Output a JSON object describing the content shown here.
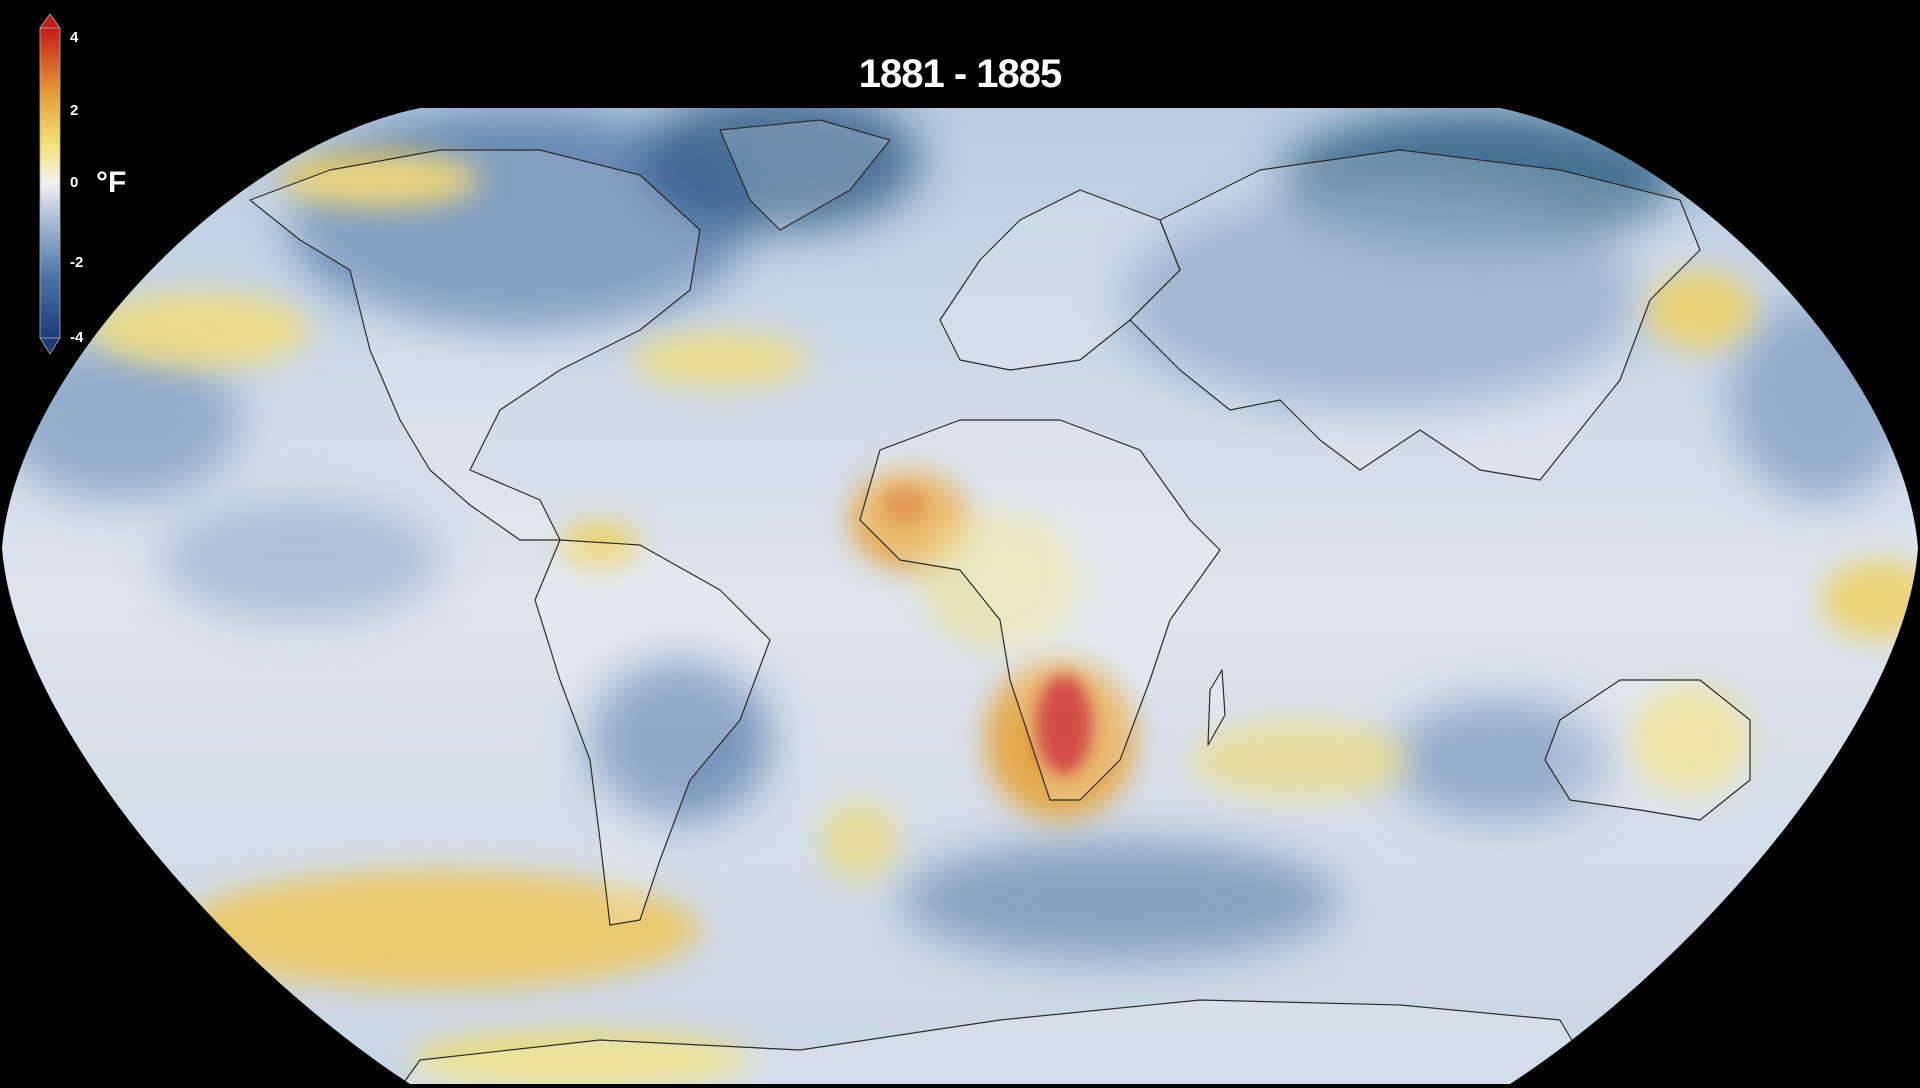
{
  "title": "1881 - 1885",
  "legend": {
    "unit": "°F",
    "ticks": [
      "4",
      "2",
      "0",
      "-2",
      "-4"
    ],
    "colors": {
      "max": "#c61a1a",
      "warm": "#e8a23a",
      "slight_warm": "#f5e27a",
      "neutral": "#f2f2f2",
      "slight_cool": "#a9bdd6",
      "cool": "#4e74a6",
      "min": "#1d3a78"
    }
  },
  "map": {
    "projection": "Robinson",
    "variable": "Temperature anomaly",
    "background": "#000000",
    "ocean_neutral": "#dfe6ee"
  }
}
